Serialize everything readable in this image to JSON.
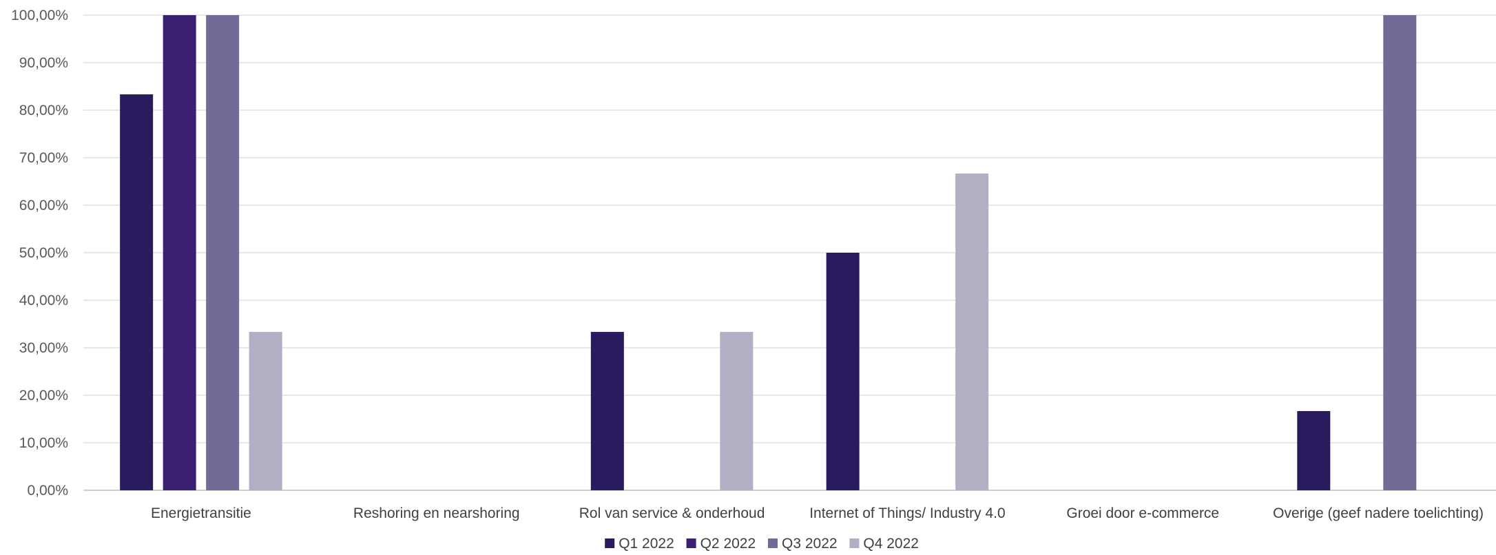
{
  "chart_data": {
    "type": "bar",
    "categories": [
      "Energietransitie",
      "Reshoring en nearshoring",
      "Rol van service & onderhoud",
      "Internet of Things/ Industry 4.0",
      "Groei door e-commerce",
      "Overige (geef nadere toelichting)"
    ],
    "series": [
      {
        "name": "Q1 2022",
        "color": "#2a1b5e",
        "values": [
          83.33,
          0,
          33.33,
          50.0,
          0,
          16.67
        ]
      },
      {
        "name": "Q2 2022",
        "color": "#3a1f73",
        "values": [
          100.0,
          0,
          0,
          0,
          0,
          0
        ]
      },
      {
        "name": "Q3 2022",
        "color": "#736b96",
        "values": [
          100.0,
          0,
          0,
          0,
          0,
          100.0
        ]
      },
      {
        "name": "Q4 2022",
        "color": "#b2afc4",
        "values": [
          33.33,
          0,
          33.33,
          66.67,
          0,
          0
        ]
      }
    ],
    "yticks": [
      "0,00%",
      "10,00%",
      "20,00%",
      "30,00%",
      "40,00%",
      "50,00%",
      "60,00%",
      "70,00%",
      "80,00%",
      "90,00%",
      "100,00%"
    ],
    "ylim": [
      0,
      100
    ],
    "grid": true,
    "legend_position": "bottom",
    "title": "",
    "xlabel": "",
    "ylabel": ""
  }
}
